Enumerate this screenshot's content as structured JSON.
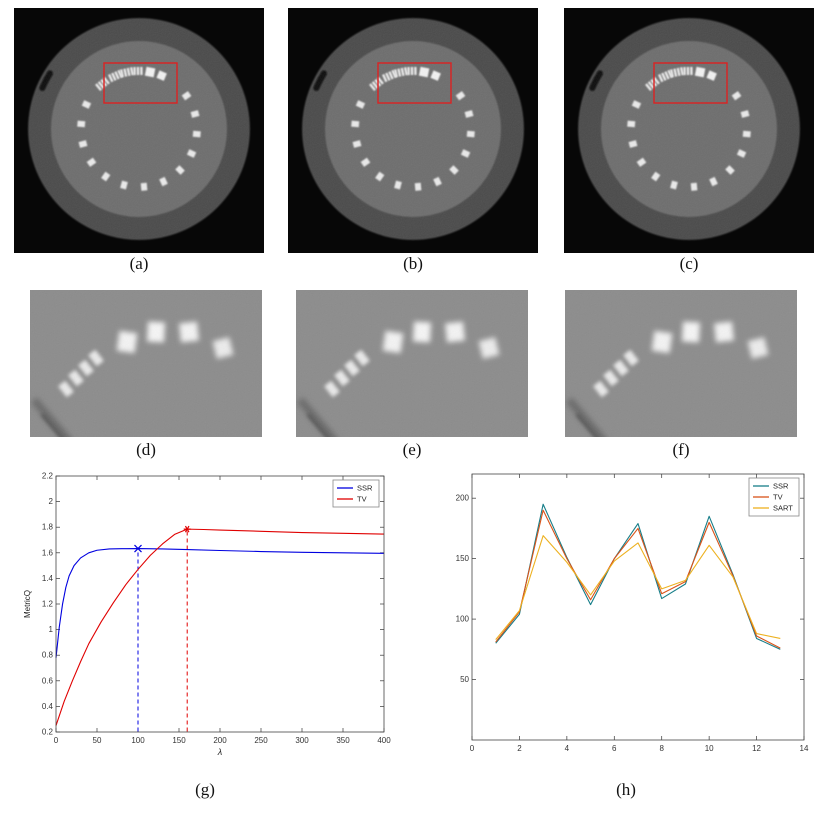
{
  "figure": {
    "labels": {
      "a": "(a)",
      "b": "(b)",
      "c": "(c)",
      "d": "(d)",
      "e": "(e)",
      "f": "(f)",
      "g": "(g)",
      "h": "(h)"
    },
    "roi_color": "#dd2222",
    "description_colors": {
      "phantom_bg": "#070707",
      "phantom_outer": "#4c4c4c",
      "phantom_inner": "#6e6e6e",
      "crop_bg": "#8c8c8c"
    }
  },
  "chart_data": [
    {
      "id": "g",
      "type": "line",
      "title": "",
      "xlabel": "λ",
      "ylabel": "MetricQ",
      "xlim": [
        0,
        400
      ],
      "ylim": [
        0.2,
        2.2
      ],
      "xticks": [
        0,
        50,
        100,
        150,
        200,
        250,
        300,
        350,
        400
      ],
      "yticks": [
        0.2,
        0.4,
        0.6,
        0.8,
        1,
        1.2,
        1.4,
        1.6,
        1.8,
        2,
        2.2
      ],
      "grid": false,
      "legend": {
        "position": "top-right"
      },
      "series": [
        {
          "name": "SSR",
          "color": "#0000e0",
          "x": [
            0,
            4,
            8,
            12,
            16,
            22,
            30,
            40,
            50,
            65,
            80,
            100,
            130,
            160,
            200,
            250,
            300,
            350,
            400
          ],
          "y": [
            0.78,
            1.02,
            1.2,
            1.33,
            1.42,
            1.5,
            1.56,
            1.6,
            1.62,
            1.63,
            1.632,
            1.633,
            1.63,
            1.625,
            1.618,
            1.61,
            1.604,
            1.6,
            1.596
          ]
        },
        {
          "name": "TV",
          "color": "#e00000",
          "x": [
            0,
            10,
            20,
            30,
            40,
            55,
            70,
            85,
            100,
            115,
            130,
            145,
            160,
            180,
            200,
            250,
            300,
            350,
            400
          ],
          "y": [
            0.25,
            0.44,
            0.6,
            0.75,
            0.89,
            1.06,
            1.21,
            1.35,
            1.47,
            1.58,
            1.67,
            1.745,
            1.785,
            1.782,
            1.778,
            1.768,
            1.758,
            1.752,
            1.746
          ]
        }
      ],
      "optimal_points": [
        {
          "series": "SSR",
          "x": 100,
          "y": 1.633,
          "marker": "x"
        },
        {
          "series": "TV",
          "x": 160,
          "y": 1.785,
          "marker": "*"
        }
      ]
    },
    {
      "id": "h",
      "type": "line",
      "title": "",
      "xlabel": "",
      "ylabel": "",
      "xlim": [
        0,
        14
      ],
      "ylim": [
        0,
        220
      ],
      "xticks": [
        0,
        2,
        4,
        6,
        8,
        10,
        12,
        14
      ],
      "yticks": [
        50,
        100,
        150,
        200
      ],
      "grid": false,
      "legend": {
        "position": "top-right"
      },
      "x": [
        1,
        2,
        3,
        4,
        5,
        6,
        7,
        8,
        9,
        10,
        11,
        12,
        13
      ],
      "series": [
        {
          "name": "SSR",
          "color": "#177e89",
          "values": [
            80,
            104,
            195,
            151,
            112,
            150,
            179,
            117,
            129,
            185,
            137,
            84,
            75
          ]
        },
        {
          "name": "TV",
          "color": "#d95319",
          "values": [
            81,
            106,
            190,
            150,
            116,
            150,
            175,
            121,
            131,
            180,
            136,
            86,
            76
          ]
        },
        {
          "name": "SART",
          "color": "#edb120",
          "values": [
            83,
            107,
            169,
            147,
            120,
            148,
            163,
            125,
            132,
            161,
            135,
            88,
            84
          ]
        }
      ]
    }
  ]
}
